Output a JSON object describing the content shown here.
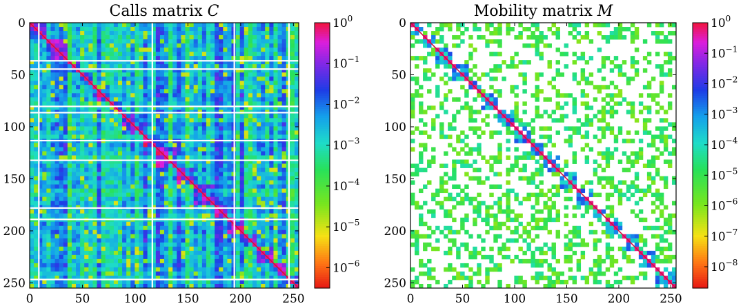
{
  "chart_data": [
    {
      "type": "heatmap",
      "title": "Calls matrix C",
      "title_text": "Calls matrix ",
      "title_symbol": "C",
      "xlim": [
        0,
        255
      ],
      "ylim": [
        0,
        255
      ],
      "y_inverted": true,
      "xticks": [
        0,
        50,
        100,
        150,
        200,
        250
      ],
      "yticks": [
        0,
        50,
        100,
        150,
        200,
        250
      ],
      "color_scale": "log",
      "colorbar": {
        "range": [
          -6.5,
          0
        ],
        "ticks": [
          {
            "base": "10",
            "exp": "0",
            "value": 0
          },
          {
            "base": "10",
            "exp": "−1",
            "value": -1
          },
          {
            "base": "10",
            "exp": "−2",
            "value": -2
          },
          {
            "base": "10",
            "exp": "−3",
            "value": -3
          },
          {
            "base": "10",
            "exp": "−4",
            "value": -4
          },
          {
            "base": "10",
            "exp": "−5",
            "value": -5
          },
          {
            "base": "10",
            "exp": "−6",
            "value": -6
          }
        ]
      },
      "diagonal_blocks": [
        [
          0,
          18
        ],
        [
          18,
          35
        ],
        [
          35,
          48
        ],
        [
          48,
          62
        ],
        [
          62,
          78
        ],
        [
          78,
          90
        ],
        [
          90,
          108
        ],
        [
          108,
          122
        ],
        [
          122,
          140
        ],
        [
          140,
          158
        ],
        [
          158,
          175
        ],
        [
          175,
          190
        ],
        [
          190,
          205
        ],
        [
          205,
          218
        ],
        [
          218,
          232
        ],
        [
          232,
          245
        ],
        [
          245,
          255
        ]
      ],
      "empty_rows": [
        36,
        44,
        80,
        86,
        113,
        132,
        178,
        189,
        247
      ],
      "empty_cols": [
        8,
        116,
        194,
        246
      ],
      "background": "dense"
    },
    {
      "type": "heatmap",
      "title": "Mobility matrix M",
      "title_text": "Mobility matrix ",
      "title_symbol": "M",
      "xlim": [
        0,
        255
      ],
      "ylim": [
        0,
        255
      ],
      "y_inverted": true,
      "xticks": [
        0,
        50,
        100,
        150,
        200,
        250
      ],
      "yticks": [
        0,
        50,
        100,
        150,
        200,
        250
      ],
      "color_scale": "log",
      "colorbar": {
        "range": [
          -8.7,
          0
        ],
        "ticks": [
          {
            "base": "10",
            "exp": "0",
            "value": 0
          },
          {
            "base": "10",
            "exp": "−1",
            "value": -1
          },
          {
            "base": "10",
            "exp": "−2",
            "value": -2
          },
          {
            "base": "10",
            "exp": "−3",
            "value": -3
          },
          {
            "base": "10",
            "exp": "−4",
            "value": -4
          },
          {
            "base": "10",
            "exp": "−5",
            "value": -5
          },
          {
            "base": "10",
            "exp": "−6",
            "value": -6
          },
          {
            "base": "10",
            "exp": "−7",
            "value": -7
          },
          {
            "base": "10",
            "exp": "−8",
            "value": -8
          }
        ]
      },
      "diagonal_blocks": [
        [
          0,
          12
        ],
        [
          12,
          25
        ],
        [
          25,
          40
        ],
        [
          40,
          55
        ],
        [
          55,
          70
        ],
        [
          70,
          86
        ],
        [
          86,
          100
        ],
        [
          100,
          115
        ],
        [
          115,
          128
        ],
        [
          128,
          145
        ],
        [
          145,
          160
        ],
        [
          160,
          175
        ],
        [
          175,
          190
        ],
        [
          190,
          205
        ],
        [
          205,
          220
        ],
        [
          220,
          235
        ],
        [
          235,
          255
        ]
      ],
      "empty_rows": [],
      "empty_cols": [],
      "background": "sparse"
    }
  ]
}
